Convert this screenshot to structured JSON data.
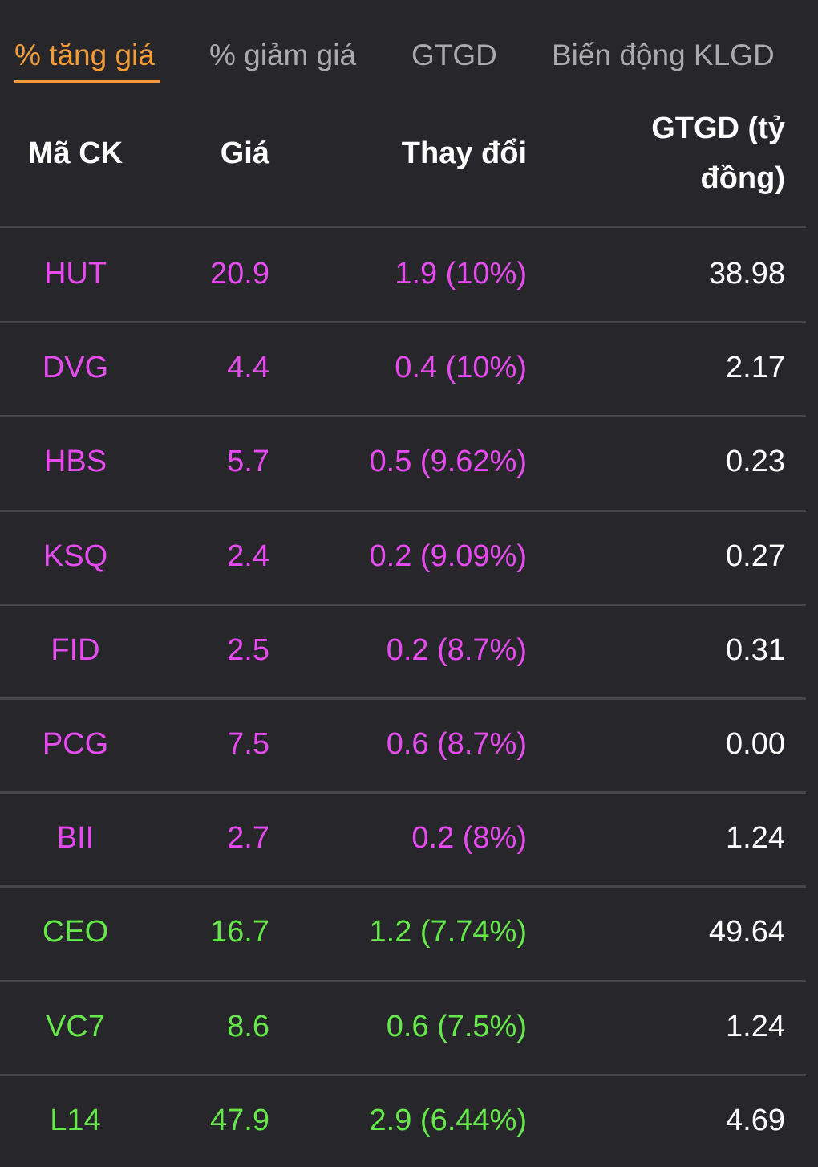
{
  "tabs": [
    {
      "label": "% tăng giá",
      "active": true
    },
    {
      "label": "% giảm giá",
      "active": false
    },
    {
      "label": "GTGD",
      "active": false
    },
    {
      "label": "Biến động KLGD",
      "active": false
    }
  ],
  "table": {
    "headers": {
      "code": "Mã CK",
      "price": "Giá",
      "change": "Thay đổi",
      "value_line1": "GTGD (tỷ",
      "value_line2": "đồng)"
    },
    "rows": [
      {
        "code": "HUT",
        "price": "20.9",
        "change": "1.9 (10%)",
        "value": "38.98",
        "status": "ceiling"
      },
      {
        "code": "DVG",
        "price": "4.4",
        "change": "0.4 (10%)",
        "value": "2.17",
        "status": "ceiling"
      },
      {
        "code": "HBS",
        "price": "5.7",
        "change": "0.5 (9.62%)",
        "value": "0.23",
        "status": "ceiling"
      },
      {
        "code": "KSQ",
        "price": "2.4",
        "change": "0.2 (9.09%)",
        "value": "0.27",
        "status": "ceiling"
      },
      {
        "code": "FID",
        "price": "2.5",
        "change": "0.2 (8.7%)",
        "value": "0.31",
        "status": "ceiling"
      },
      {
        "code": "PCG",
        "price": "7.5",
        "change": "0.6 (8.7%)",
        "value": "0.00",
        "status": "ceiling"
      },
      {
        "code": "BII",
        "price": "2.7",
        "change": "0.2 (8%)",
        "value": "1.24",
        "status": "ceiling"
      },
      {
        "code": "CEO",
        "price": "16.7",
        "change": "1.2 (7.74%)",
        "value": "49.64",
        "status": "up"
      },
      {
        "code": "VC7",
        "price": "8.6",
        "change": "0.6 (7.5%)",
        "value": "1.24",
        "status": "up"
      },
      {
        "code": "L14",
        "price": "47.9",
        "change": "2.9 (6.44%)",
        "value": "4.69",
        "status": "up"
      }
    ]
  },
  "colors": {
    "background": "#26262b",
    "active_tab": "#f29b38",
    "inactive_tab": "#a9a9ae",
    "ceiling": "#e74bf0",
    "up": "#66e84a",
    "divider": "#45454b"
  }
}
